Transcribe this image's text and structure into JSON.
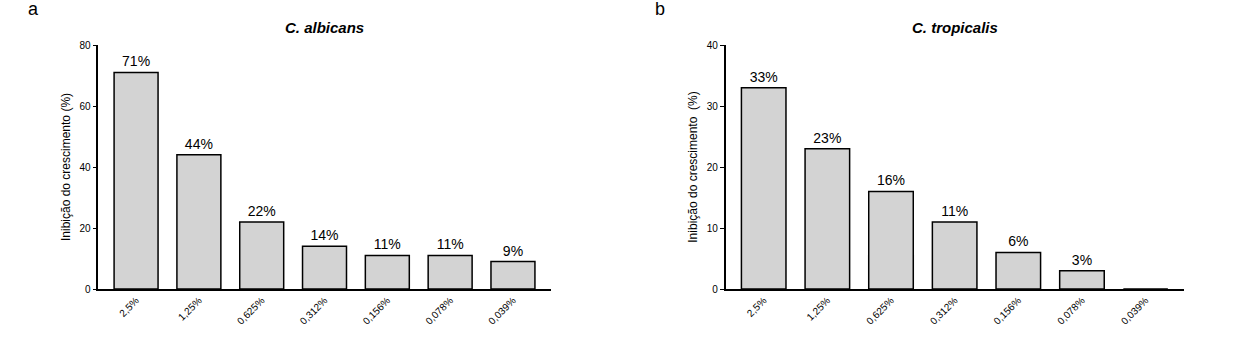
{
  "chart_data": [
    {
      "type": "bar",
      "annotation": "a",
      "title": "C. albicans",
      "y_label": "Inibição do crescimento (%)",
      "categories": [
        "2,5%",
        "1,25%",
        "0,625%",
        "0,312%",
        "0,156%",
        "0,078%",
        "0,039%"
      ],
      "values": [
        71,
        44,
        22,
        14,
        11,
        11,
        9
      ],
      "value_labels": [
        "71%",
        "44%",
        "22%",
        "14%",
        "11%",
        "11%",
        "9%"
      ],
      "color": "#d3d3d3",
      "ylim": [
        0,
        80
      ],
      "yticks": [
        0,
        20,
        40,
        60,
        80
      ],
      "grid": false,
      "data_labels": true
    },
    {
      "type": "bar",
      "annotation": "b",
      "title": "C. tropicalis",
      "y_label": "Inibição do crescimento  (%)",
      "categories": [
        "2,5%",
        "1,25%",
        "0,625%",
        "0,312%",
        "0,156%",
        "0,078%",
        "0,039%"
      ],
      "values": [
        33,
        23,
        16,
        11,
        6,
        3,
        0
      ],
      "value_labels": [
        "33%",
        "23%",
        "16%",
        "11%",
        "6%",
        "3%",
        null
      ],
      "color": "#d3d3d3",
      "ylim": [
        0,
        40
      ],
      "yticks": [
        0,
        10,
        20,
        30,
        40
      ],
      "grid": false,
      "data_labels": true
    }
  ]
}
